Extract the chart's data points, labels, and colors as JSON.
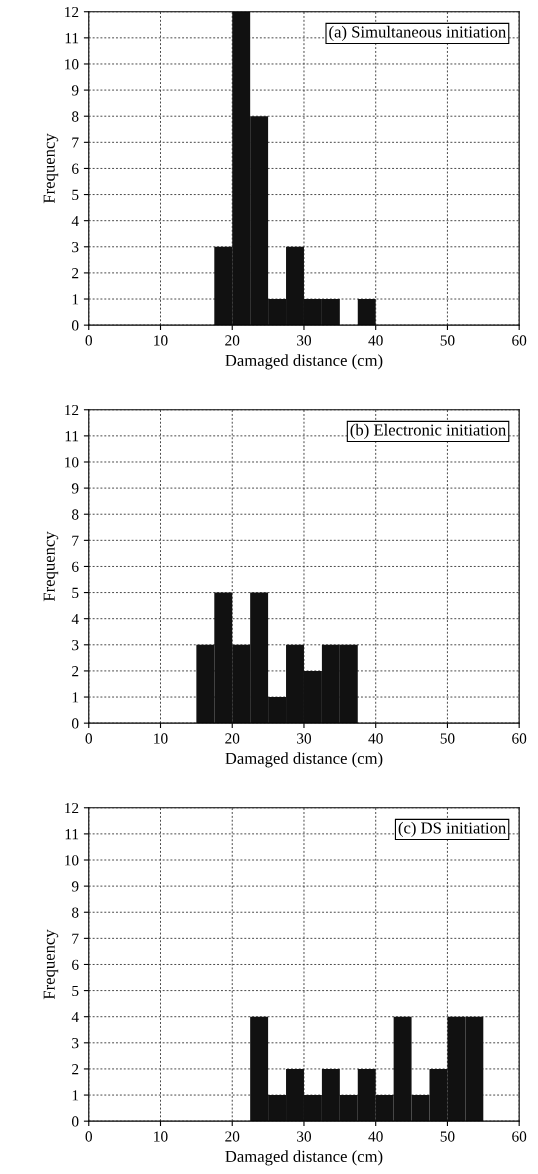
{
  "chart_data": [
    {
      "type": "histogram",
      "annotations": [
        "(a) Simultaneous initiation"
      ],
      "xlabel": "Damaged distance (cm)",
      "ylabel": "Frequency",
      "color": "#111111",
      "bins": [
        17.5,
        20,
        22.5,
        25,
        27.5,
        30,
        32.5,
        35,
        37.5,
        40
      ],
      "values": [
        3,
        12,
        8,
        1,
        3,
        1,
        1,
        0,
        1
      ],
      "xlim": [
        0,
        60
      ],
      "xticks": [
        0,
        10,
        20,
        30,
        40,
        50,
        60
      ],
      "ylim": [
        0,
        12
      ],
      "yticks": [
        0,
        1,
        2,
        3,
        4,
        5,
        6,
        7,
        8,
        9,
        10,
        11,
        12
      ],
      "grid": true
    },
    {
      "type": "histogram",
      "annotations": [
        "(b) Electronic initiation"
      ],
      "xlabel": "Damaged distance (cm)",
      "ylabel": "Frequency",
      "color": "#111111",
      "bins": [
        15,
        17.5,
        20,
        22.5,
        25,
        27.5,
        30,
        32.5,
        35,
        37.5
      ],
      "values": [
        3,
        5,
        3,
        5,
        1,
        3,
        2,
        3,
        3
      ],
      "xlim": [
        0,
        60
      ],
      "xticks": [
        0,
        10,
        20,
        30,
        40,
        50,
        60
      ],
      "ylim": [
        0,
        12
      ],
      "yticks": [
        0,
        1,
        2,
        3,
        4,
        5,
        6,
        7,
        8,
        9,
        10,
        11,
        12
      ],
      "grid": true
    },
    {
      "type": "histogram",
      "annotations": [
        "(c) DS initiation"
      ],
      "xlabel": "Damaged distance (cm)",
      "ylabel": "Frequency",
      "color": "#111111",
      "bins": [
        22.5,
        25,
        27.5,
        30,
        32.5,
        35,
        37.5,
        40,
        42.5,
        45,
        47.5,
        50,
        52.5,
        55
      ],
      "values": [
        4,
        1,
        2,
        1,
        2,
        1,
        2,
        1,
        4,
        1,
        2,
        4,
        4
      ],
      "xlim": [
        0,
        60
      ],
      "xticks": [
        0,
        10,
        20,
        30,
        40,
        50,
        60
      ],
      "ylim": [
        0,
        12
      ],
      "yticks": [
        0,
        1,
        2,
        3,
        4,
        5,
        6,
        7,
        8,
        9,
        10,
        11,
        12
      ],
      "grid": true
    }
  ]
}
